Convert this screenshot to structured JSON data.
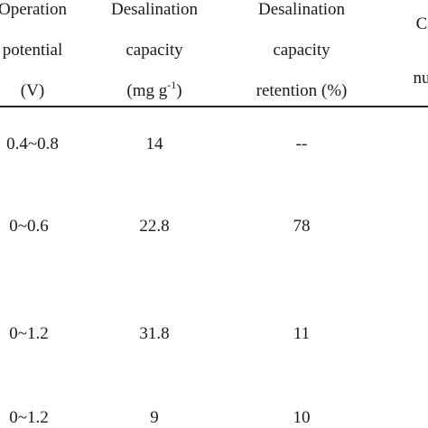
{
  "table": {
    "headers": [
      [
        "Operation",
        "potential",
        "(V)"
      ],
      [
        "Desalination",
        "capacity",
        "(mg g",
        "-1",
        ")"
      ],
      [
        "Desalination",
        "capacity",
        "retention (%)"
      ],
      [
        "C",
        "nu"
      ]
    ],
    "rows": [
      [
        "0.4~0.8",
        "14",
        "--"
      ],
      [
        "0~0.6",
        "22.8",
        "78"
      ],
      [
        "0~1.2",
        "31.8",
        "11"
      ],
      [
        "0~1.2",
        "9",
        "10"
      ]
    ]
  }
}
